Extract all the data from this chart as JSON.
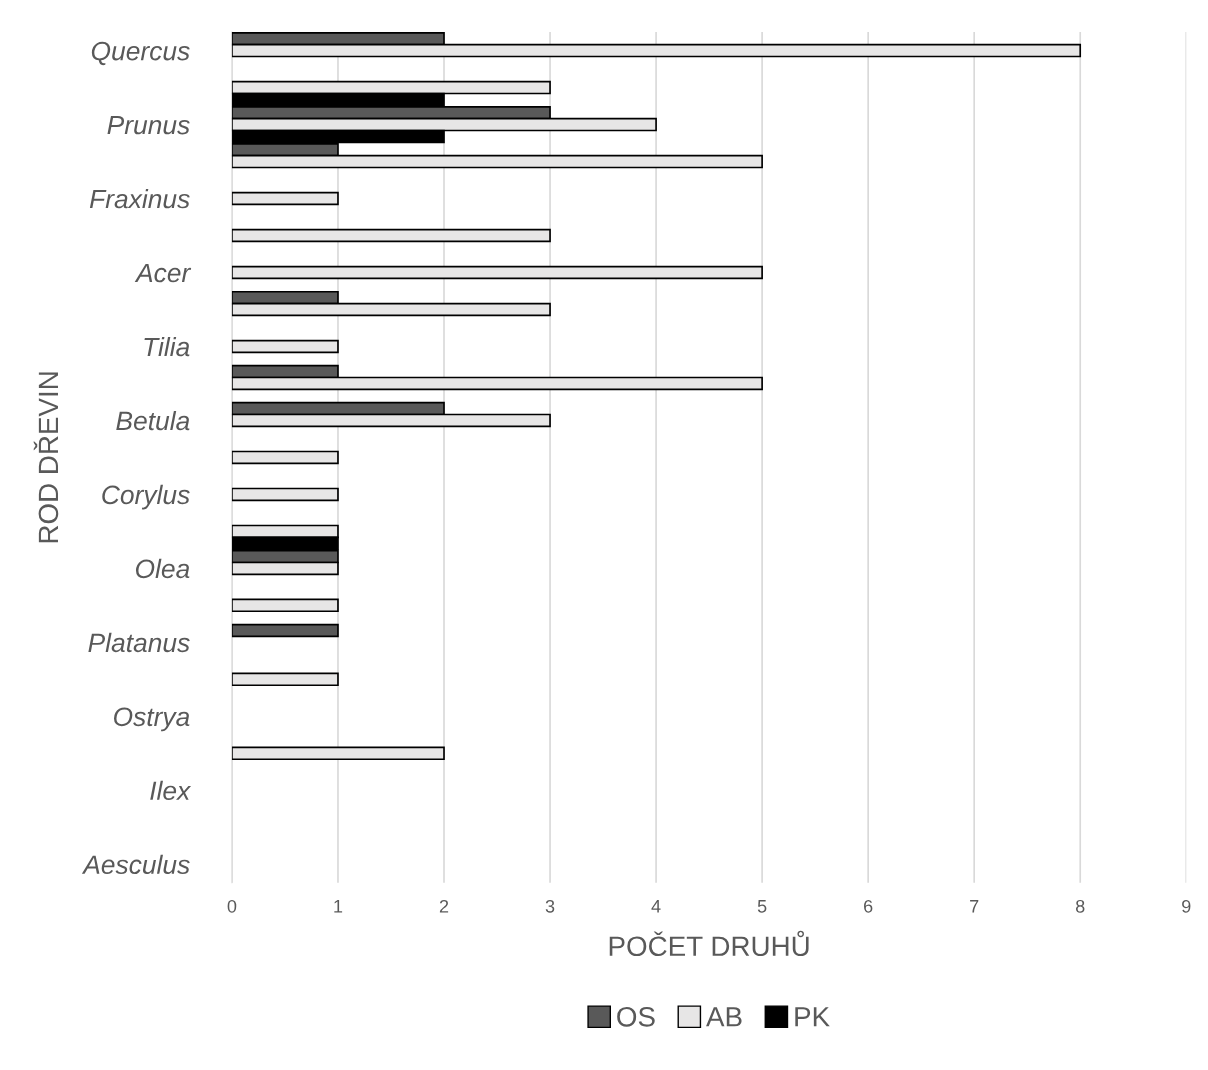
{
  "chart_data": {
    "type": "bar",
    "orientation": "horizontal",
    "xlabel": "POČET DRUHŮ",
    "ylabel": "ROD DŘEVIN",
    "categories": [
      "Quercus",
      null,
      "Prunus",
      null,
      "Fraxinus",
      null,
      "Acer",
      null,
      "Tilia",
      null,
      "Betula",
      null,
      "Corylus",
      null,
      "Olea",
      null,
      "Platanus",
      null,
      "Ostrya",
      null,
      "Ilex",
      null,
      "Aesculus"
    ],
    "series": [
      {
        "name": "OS",
        "color": "#595959",
        "values": [
          2,
          null,
          3,
          1,
          null,
          null,
          null,
          1,
          null,
          1,
          2,
          null,
          null,
          null,
          1,
          null,
          1,
          null,
          null,
          null,
          null,
          null,
          null
        ]
      },
      {
        "name": "AB",
        "color": "#e7e6e6",
        "values": [
          8,
          3,
          4,
          5,
          1,
          3,
          5,
          3,
          1,
          5,
          3,
          1,
          1,
          1,
          1,
          1,
          null,
          1,
          null,
          2,
          null,
          null,
          null
        ]
      },
      {
        "name": "PK",
        "color": "#000000",
        "values": [
          null,
          2,
          2,
          null,
          null,
          null,
          null,
          null,
          null,
          null,
          null,
          null,
          null,
          1,
          null,
          null,
          null,
          null,
          null,
          null,
          null,
          null,
          null
        ]
      }
    ],
    "xlim": [
      0,
      9
    ],
    "xticks": [
      0,
      1,
      2,
      3,
      4,
      5,
      6,
      7,
      8,
      9
    ],
    "grid": "x",
    "legend": "bottom"
  }
}
